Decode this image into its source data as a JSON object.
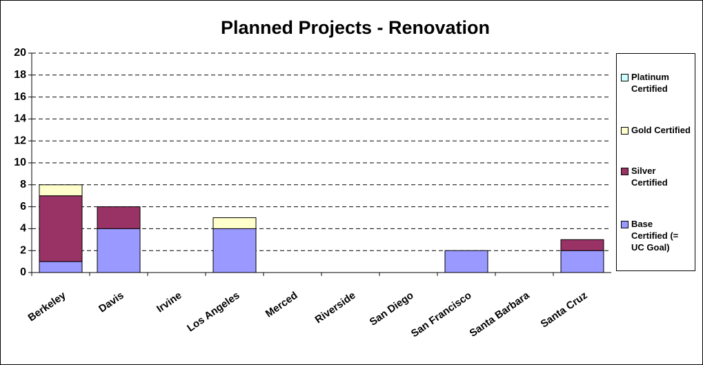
{
  "chart_data": {
    "type": "stacked_bar",
    "title": "Planned Projects - Renovation",
    "categories": [
      "Berkeley",
      "Davis",
      "Irvine",
      "Los Angeles",
      "Merced",
      "Riverside",
      "San Diego",
      "San Francisco",
      "Santa Barbara",
      "Santa Cruz"
    ],
    "series": [
      {
        "name": "Base Certified (= UC Goal)",
        "color": "#9999ff",
        "values": [
          1,
          4,
          0,
          4,
          0,
          0,
          0,
          2,
          0,
          2
        ]
      },
      {
        "name": "Silver Certified",
        "color": "#993366",
        "values": [
          6,
          2,
          0,
          0,
          0,
          0,
          0,
          0,
          0,
          1
        ]
      },
      {
        "name": "Gold Certified",
        "color": "#ffffcc",
        "values": [
          1,
          0,
          0,
          1,
          0,
          0,
          0,
          0,
          0,
          0
        ]
      },
      {
        "name": "Platinum Certified",
        "color": "#ccffff",
        "values": [
          0,
          0,
          0,
          0,
          0,
          0,
          0,
          0,
          0,
          0
        ]
      }
    ],
    "ylim": [
      0,
      20
    ],
    "yticks": [
      0,
      2,
      4,
      6,
      8,
      10,
      12,
      14,
      16,
      18,
      20
    ],
    "grid": true,
    "legend": "right"
  }
}
